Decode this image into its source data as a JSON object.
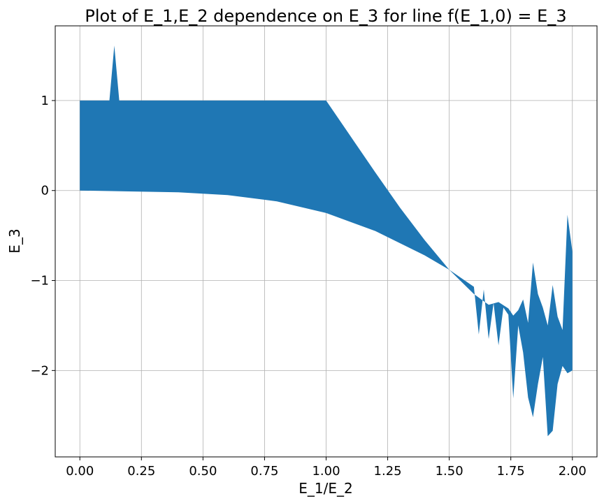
{
  "chart_data": {
    "type": "area",
    "title": "Plot of E_1,E_2 dependence on E_3 for line f(E_1,0) = E_3",
    "xlabel": "E_1/E_2",
    "ylabel": "E_3",
    "xlim": [
      -0.1,
      2.1
    ],
    "ylim": [
      -2.96,
      1.83
    ],
    "grid": true,
    "fill_color": "#1f77b4",
    "x_ticks": [
      0.0,
      0.25,
      0.5,
      0.75,
      1.0,
      1.25,
      1.5,
      1.75,
      2.0
    ],
    "x_tick_labels": [
      "0.00",
      "0.25",
      "0.50",
      "0.75",
      "1.00",
      "1.25",
      "1.50",
      "1.75",
      "2.00"
    ],
    "y_ticks": [
      1,
      0,
      -1,
      -2
    ],
    "y_tick_labels": [
      "1",
      "0",
      "−1",
      "−2"
    ],
    "series": [
      {
        "upper": [
          [
            0.0,
            1.0
          ],
          [
            0.12,
            1.0
          ],
          [
            0.14,
            1.61
          ],
          [
            0.16,
            1.0
          ],
          [
            0.2,
            1.0
          ],
          [
            0.4,
            1.0
          ],
          [
            0.6,
            1.0
          ],
          [
            0.8,
            1.0
          ],
          [
            1.0,
            1.0
          ],
          [
            1.1,
            0.6
          ],
          [
            1.2,
            0.2
          ],
          [
            1.3,
            -0.19
          ],
          [
            1.4,
            -0.55
          ],
          [
            1.5,
            -0.88
          ],
          [
            1.6,
            -1.15
          ],
          [
            1.66,
            -1.27
          ],
          [
            1.7,
            -1.24
          ],
          [
            1.74,
            -1.31
          ],
          [
            1.76,
            -1.39
          ],
          [
            1.78,
            -1.33
          ],
          [
            1.8,
            -1.21
          ],
          [
            1.82,
            -1.47
          ],
          [
            1.84,
            -0.8
          ],
          [
            1.86,
            -1.15
          ],
          [
            1.88,
            -1.3
          ],
          [
            1.9,
            -1.5
          ],
          [
            1.92,
            -1.05
          ],
          [
            1.94,
            -1.4
          ],
          [
            1.96,
            -1.55
          ],
          [
            1.98,
            -0.27
          ],
          [
            2.0,
            -0.68
          ]
        ],
        "lower": [
          [
            0.0,
            0.0
          ],
          [
            0.2,
            -0.01
          ],
          [
            0.4,
            -0.02
          ],
          [
            0.6,
            -0.05
          ],
          [
            0.8,
            -0.12
          ],
          [
            1.0,
            -0.25
          ],
          [
            1.2,
            -0.45
          ],
          [
            1.4,
            -0.72
          ],
          [
            1.5,
            -0.88
          ],
          [
            1.6,
            -1.07
          ],
          [
            1.62,
            -1.6
          ],
          [
            1.64,
            -1.1
          ],
          [
            1.66,
            -1.65
          ],
          [
            1.68,
            -1.25
          ],
          [
            1.7,
            -1.72
          ],
          [
            1.72,
            -1.3
          ],
          [
            1.74,
            -1.38
          ],
          [
            1.76,
            -2.31
          ],
          [
            1.78,
            -1.5
          ],
          [
            1.8,
            -1.8
          ],
          [
            1.82,
            -2.3
          ],
          [
            1.84,
            -2.52
          ],
          [
            1.86,
            -2.15
          ],
          [
            1.88,
            -1.85
          ],
          [
            1.9,
            -2.73
          ],
          [
            1.92,
            -2.67
          ],
          [
            1.94,
            -2.15
          ],
          [
            1.96,
            -1.95
          ],
          [
            1.98,
            -2.03
          ],
          [
            2.0,
            -2.0
          ]
        ]
      }
    ]
  }
}
